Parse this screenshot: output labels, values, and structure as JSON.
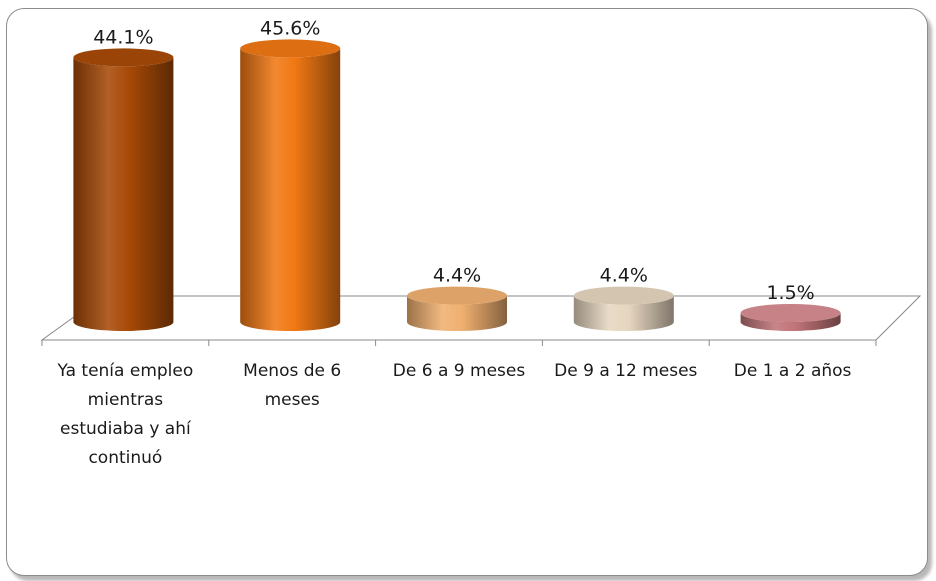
{
  "chart_data": {
    "type": "bar",
    "style": "3d-cylinder",
    "categories": [
      "Ya tenía empleo mientras estudiaba y ahí continuó",
      "Menos de 6 meses",
      "De 6 a 9 meses",
      "De 9 a 12 meses",
      "De 1 a 2 años"
    ],
    "values": [
      44.1,
      45.6,
      4.4,
      4.4,
      1.5
    ],
    "data_labels": [
      "44.1%",
      "45.6%",
      "4.4%",
      "4.4%",
      "1.5%"
    ],
    "colors": [
      "#a84a08",
      "#f07814",
      "#f0b070",
      "#e6d6c0",
      "#c07478"
    ],
    "title": "",
    "xlabel": "",
    "ylabel": "",
    "ylim": [
      0,
      50
    ],
    "grid": false,
    "legend": "none"
  }
}
